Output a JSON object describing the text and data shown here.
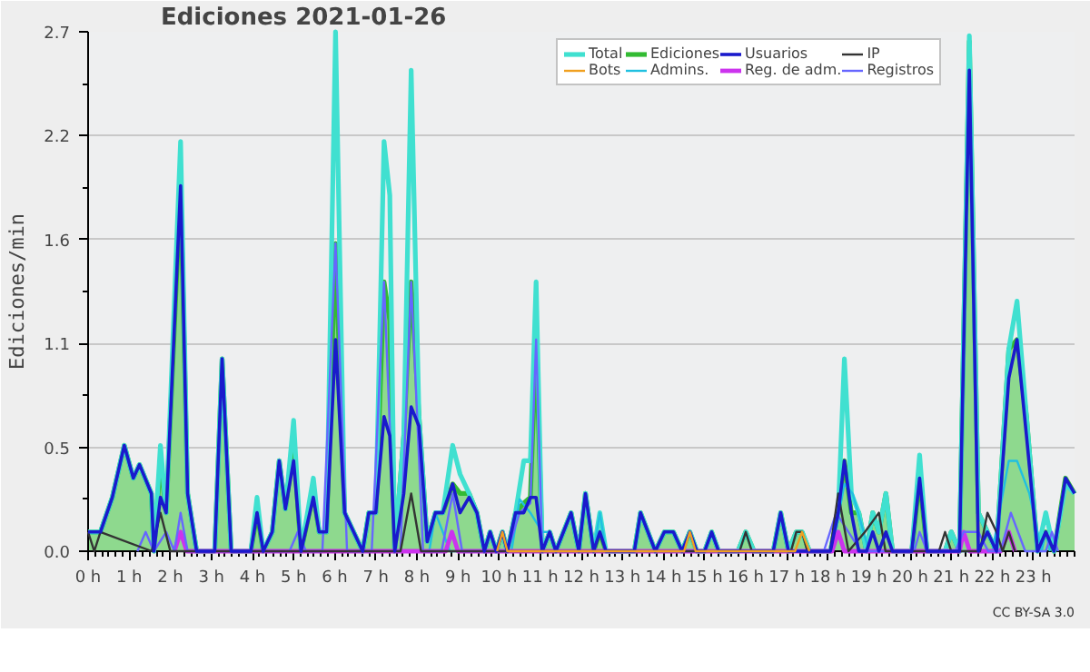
{
  "chart_data": {
    "type": "line",
    "title": "Ediciones  2021-01-26",
    "ylabel": "Ediciones/min",
    "annotations": [
      "CC BY-SA 3.0"
    ],
    "xlim": [
      0,
      24
    ],
    "ylim": [
      0,
      2.7
    ],
    "xticks": [
      {
        "value": 0,
        "label": "0 h"
      },
      {
        "value": 1,
        "label": "1 h"
      },
      {
        "value": 2,
        "label": "2 h"
      },
      {
        "value": 3,
        "label": "3 h"
      },
      {
        "value": 4,
        "label": "4 h"
      },
      {
        "value": 5,
        "label": "5 h"
      },
      {
        "value": 6,
        "label": "6 h"
      },
      {
        "value": 7,
        "label": "7 h"
      },
      {
        "value": 8,
        "label": "8 h"
      },
      {
        "value": 9,
        "label": "9 h"
      },
      {
        "value": 10,
        "label": "10 h"
      },
      {
        "value": 11,
        "label": "11 h"
      },
      {
        "value": 12,
        "label": "12 h"
      },
      {
        "value": 13,
        "label": "13 h"
      },
      {
        "value": 14,
        "label": "14 h"
      },
      {
        "value": 15,
        "label": "15 h"
      },
      {
        "value": 16,
        "label": "16 h"
      },
      {
        "value": 17,
        "label": "17 h"
      },
      {
        "value": 18,
        "label": "18 h"
      },
      {
        "value": 19,
        "label": "19 h"
      },
      {
        "value": 20,
        "label": "20 h"
      },
      {
        "value": 21,
        "label": "21 h"
      },
      {
        "value": 22,
        "label": "22 h"
      },
      {
        "value": 23,
        "label": "23 h"
      }
    ],
    "yticks": [
      {
        "value": 0,
        "label": "0.0"
      },
      {
        "value": 0.54,
        "label": "0.5"
      },
      {
        "value": 1.08,
        "label": "1.1"
      },
      {
        "value": 1.62,
        "label": "1.6"
      },
      {
        "value": 2.16,
        "label": "2.2"
      },
      {
        "value": 2.7,
        "label": "2.7"
      }
    ],
    "grid": "y",
    "legend": "top right",
    "marker": "none",
    "line_style": "solid",
    "x": [
      0,
      0.3,
      0.59,
      0.88,
      1.1,
      1.25,
      1.54,
      1.6,
      1.76,
      1.9,
      2.25,
      2.42,
      2.64,
      3.08,
      3.26,
      3.48,
      3.96,
      4.11,
      4.26,
      4.48,
      4.65,
      4.8,
      5.0,
      5.18,
      5.48,
      5.62,
      5.8,
      6.02,
      6.24,
      6.46,
      6.68,
      6.83,
      7.0,
      7.2,
      7.34,
      7.46,
      7.68,
      7.86,
      8.05,
      8.25,
      8.45,
      8.63,
      8.87,
      9.05,
      9.27,
      9.46,
      9.64,
      9.78,
      9.93,
      10.08,
      10.2,
      10.4,
      10.6,
      10.76,
      10.9,
      11.05,
      11.23,
      11.38,
      11.75,
      11.94,
      12.1,
      12.3,
      12.45,
      12.6,
      13.29,
      13.44,
      13.8,
      14.02,
      14.24,
      14.45,
      14.64,
      14.81,
      15.0,
      15.17,
      15.34,
      15.81,
      16.0,
      16.2,
      16.67,
      16.85,
      17.04,
      17.23,
      17.37,
      17.55,
      18.06,
      18.25,
      18.4,
      18.57,
      18.75,
      18.94,
      19.09,
      19.24,
      19.41,
      19.57,
      20.04,
      20.23,
      20.41,
      20.85,
      21.0,
      21.2,
      21.44,
      21.66,
      21.88,
      22.1,
      22.4,
      22.6,
      22.83,
      23.1,
      23.3,
      23.5,
      23.78,
      24
    ],
    "series": [
      {
        "name": "Ediciones",
        "type": "area",
        "color": "#33bb33",
        "values": [
          0.1,
          0.1,
          0.28,
          0.55,
          0.38,
          0.45,
          0.3,
          0,
          0.47,
          0.2,
          1.9,
          0.3,
          0,
          0,
          1.0,
          0,
          0,
          0.2,
          0,
          0.1,
          0.47,
          0.22,
          0.55,
          0,
          0.3,
          0.1,
          0.1,
          1.6,
          0.2,
          0.1,
          0,
          0.2,
          0.2,
          1.4,
          1.2,
          0,
          0.6,
          1.4,
          0.7,
          0.05,
          0.2,
          0.2,
          0.35,
          0.3,
          0.3,
          0.2,
          0,
          0.1,
          0,
          0.1,
          0,
          0.2,
          0.25,
          0.28,
          1.1,
          0,
          0.1,
          0,
          0.2,
          0,
          0.3,
          0,
          0.1,
          0,
          0,
          0.2,
          0,
          0.1,
          0.1,
          0,
          0.1,
          0,
          0,
          0.1,
          0,
          0,
          0.1,
          0,
          0,
          0.2,
          0,
          0.1,
          0.1,
          0,
          0,
          0.2,
          0.47,
          0.2,
          0.2,
          0,
          0.2,
          0.1,
          0.3,
          0,
          0,
          0.38,
          0,
          0,
          0.1,
          0,
          2.65,
          0.2,
          0.1,
          0,
          1.05,
          1.1,
          0.7,
          0,
          0.1,
          0,
          0.38,
          0.3
        ]
      },
      {
        "name": "Total",
        "color": "#40e0d0",
        "values": [
          0.1,
          0.1,
          0.28,
          0.55,
          0.38,
          0.45,
          0.3,
          0,
          0.55,
          0.2,
          2.13,
          0.3,
          0,
          0,
          1.0,
          0,
          0,
          0.28,
          0,
          0.1,
          0.47,
          0.22,
          0.68,
          0,
          0.38,
          0.1,
          0.1,
          2.7,
          0.2,
          0.1,
          0,
          0.2,
          0.2,
          2.13,
          1.85,
          0,
          0.6,
          2.5,
          0.7,
          0.05,
          0.2,
          0.2,
          0.55,
          0.4,
          0.3,
          0.2,
          0,
          0.1,
          0,
          0.1,
          0,
          0.2,
          0.47,
          0.47,
          1.4,
          0,
          0.1,
          0,
          0.2,
          0,
          0.3,
          0,
          0.2,
          0,
          0,
          0.2,
          0,
          0.1,
          0.1,
          0,
          0.1,
          0,
          0,
          0.1,
          0,
          0,
          0.1,
          0,
          0,
          0.2,
          0,
          0.1,
          0.1,
          0,
          0,
          0.2,
          1.0,
          0.3,
          0.2,
          0,
          0.2,
          0.1,
          0.3,
          0,
          0,
          0.5,
          0,
          0,
          0.1,
          0,
          2.68,
          0.2,
          0.1,
          0,
          1.05,
          1.3,
          0.7,
          0,
          0.2,
          0,
          0.35,
          0.3
        ]
      },
      {
        "name": "Bots",
        "color": "#f0a020",
        "x": [
          9.95,
          10.08,
          10.2,
          14.5,
          14.64,
          14.78,
          17.2,
          17.37,
          17.55
        ],
        "values": [
          0,
          0.1,
          0,
          0,
          0.1,
          0,
          0,
          0.1,
          0
        ]
      },
      {
        "name": "Admins.",
        "color": "#20c0e0",
        "x": [
          8.3,
          8.45,
          8.63,
          8.8,
          10.3,
          10.5,
          10.76,
          11.05,
          11.23,
          11.38,
          12.3,
          12.45,
          12.6,
          18.1,
          18.4,
          18.6,
          19.0,
          22.0,
          22.4,
          22.6,
          22.9,
          23.2,
          23.3,
          23.4
        ],
        "values": [
          0,
          0.2,
          0.1,
          0,
          0,
          0.27,
          0.2,
          0.1,
          0.1,
          0,
          0,
          0.2,
          0,
          0,
          0.35,
          0.3,
          0,
          0,
          0.47,
          0.47,
          0.3,
          0,
          0.1,
          0
        ]
      },
      {
        "name": "Reg. de adm.",
        "color": "#cc33ee",
        "x": [
          2.1,
          2.25,
          2.4,
          8.7,
          8.85,
          9.0,
          18.1,
          18.25,
          18.4,
          21.2,
          21.3,
          21.45,
          22.2,
          22.4,
          22.55
        ],
        "values": [
          0,
          0.1,
          0,
          0,
          0.1,
          0,
          0,
          0.1,
          0,
          0,
          0.1,
          0,
          0,
          0.1,
          0
        ]
      },
      {
        "name": "Registros",
        "color": "#6666ff",
        "x": [
          1.2,
          1.4,
          1.6,
          1.9,
          2.1,
          2.25,
          2.42,
          4.9,
          5.1,
          5.3,
          5.7,
          6.02,
          6.3,
          6.9,
          7.2,
          7.46,
          7.6,
          7.86,
          8.15,
          8.6,
          8.87,
          9.1,
          10.2,
          10.5,
          10.76,
          10.9,
          11.05,
          17.9,
          18.2,
          18.5,
          18.8,
          20.1,
          20.23,
          20.41,
          21.1,
          21.3,
          21.66,
          21.9,
          22.2,
          22.45,
          22.8,
          23.3,
          23.45,
          23.6
        ],
        "values": [
          0,
          0.1,
          0,
          0.1,
          0,
          0.2,
          0,
          0,
          0.1,
          0,
          0,
          1.6,
          0,
          0,
          1.4,
          0,
          0,
          1.4,
          0,
          0,
          0.3,
          0,
          0,
          0.2,
          0.25,
          1.1,
          0,
          0,
          0.2,
          0.1,
          0,
          0,
          0.1,
          0,
          0,
          0.1,
          0.1,
          0,
          0,
          0.2,
          0,
          0,
          0.1,
          0
        ]
      },
      {
        "name": "IP",
        "color": "#333333",
        "x": [
          0,
          0.15,
          0.3,
          1.55,
          1.76,
          2.0,
          7.6,
          7.86,
          8.1,
          15.85,
          16.0,
          16.15,
          17.1,
          17.23,
          17.37,
          17.5,
          18.05,
          18.25,
          18.5,
          18.9,
          19.24,
          19.4,
          20.7,
          20.85,
          21.0,
          21.7,
          21.88,
          22.1,
          22.25,
          22.4,
          22.55
        ],
        "values": [
          0.1,
          0,
          0.1,
          0,
          0.2,
          0,
          0,
          0.3,
          0,
          0,
          0.1,
          0,
          0,
          0.1,
          0.1,
          0,
          0,
          0.3,
          0,
          0.1,
          0.2,
          0,
          0,
          0.1,
          0,
          0,
          0.2,
          0.1,
          0,
          0.1,
          0
        ]
      },
      {
        "name": "Usuarios",
        "color": "#1a1acc",
        "values": [
          0.1,
          0.1,
          0.28,
          0.55,
          0.38,
          0.45,
          0.3,
          0,
          0.28,
          0.2,
          1.9,
          0.3,
          0,
          0,
          1.0,
          0,
          0,
          0.2,
          0,
          0.1,
          0.47,
          0.22,
          0.47,
          0,
          0.28,
          0.1,
          0.1,
          1.1,
          0.2,
          0.1,
          0,
          0.2,
          0.2,
          0.7,
          0.6,
          0,
          0.3,
          0.75,
          0.65,
          0.05,
          0.2,
          0.2,
          0.35,
          0.2,
          0.28,
          0.2,
          0,
          0.1,
          0,
          0.1,
          0,
          0.2,
          0.2,
          0.28,
          0.28,
          0,
          0.1,
          0,
          0.2,
          0,
          0.3,
          0,
          0.1,
          0,
          0,
          0.2,
          0,
          0.1,
          0.1,
          0,
          0.1,
          0,
          0,
          0.1,
          0,
          0,
          0,
          0,
          0,
          0.2,
          0,
          0,
          0,
          0,
          0,
          0.2,
          0.47,
          0.2,
          0,
          0,
          0.1,
          0,
          0.1,
          0,
          0,
          0.38,
          0,
          0,
          0,
          0,
          2.5,
          0,
          0.1,
          0,
          0.9,
          1.1,
          0.6,
          0,
          0.1,
          0,
          0.38,
          0.3
        ]
      }
    ]
  }
}
